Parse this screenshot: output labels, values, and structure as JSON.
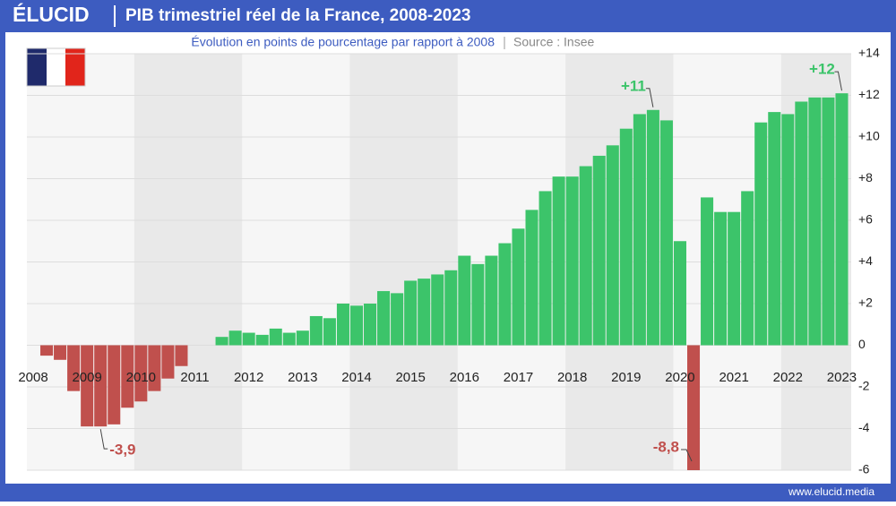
{
  "brand": "ÉLUCID",
  "footer": "www.elucid.media",
  "chart_data": {
    "type": "bar",
    "title": "PIB trimestriel réel de la France, 2008-2023",
    "subtitle": "Évolution en points de pourcentage par rapport à 2008",
    "source": "Source : Insee",
    "categories": [
      "2008",
      null,
      null,
      null,
      "2009",
      null,
      null,
      null,
      "2010",
      null,
      null,
      null,
      "2011",
      null,
      null,
      null,
      "2012",
      null,
      null,
      null,
      "2013",
      null,
      null,
      null,
      "2014",
      null,
      null,
      null,
      "2015",
      null,
      null,
      null,
      "2016",
      null,
      null,
      null,
      "2017",
      null,
      null,
      null,
      "2018",
      null,
      null,
      null,
      "2019",
      null,
      null,
      null,
      "2020",
      null,
      null,
      null,
      "2021",
      null,
      null,
      null,
      "2022",
      null,
      null,
      null,
      "2023"
    ],
    "values": [
      0,
      -0.5,
      -0.7,
      -2.2,
      -3.9,
      -3.9,
      -3.8,
      -3.0,
      -2.7,
      -2.2,
      -1.6,
      -1.0,
      0,
      0,
      0.4,
      0.7,
      0.6,
      0.5,
      0.8,
      0.6,
      0.7,
      1.4,
      1.3,
      2.0,
      1.9,
      2.0,
      2.6,
      2.5,
      3.1,
      3.2,
      3.4,
      3.6,
      4.3,
      3.9,
      4.3,
      4.9,
      5.6,
      6.5,
      7.4,
      8.1,
      8.1,
      8.6,
      9.1,
      9.6,
      10.4,
      11.1,
      11.3,
      10.8,
      5.0,
      -8.8,
      7.1,
      6.4,
      6.4,
      7.4,
      10.7,
      11.2,
      11.1,
      11.7,
      11.9,
      11.9,
      12.1
    ],
    "value_labels": [
      null,
      null,
      null,
      null,
      null,
      "-3,9",
      null,
      null,
      null,
      null,
      null,
      null,
      null,
      null,
      null,
      null,
      null,
      null,
      null,
      null,
      null,
      null,
      null,
      null,
      null,
      null,
      null,
      null,
      null,
      null,
      null,
      null,
      null,
      null,
      null,
      null,
      null,
      null,
      null,
      null,
      null,
      null,
      null,
      null,
      null,
      null,
      "+11",
      null,
      null,
      "-8,8",
      null,
      null,
      null,
      null,
      null,
      null,
      null,
      null,
      null,
      null,
      "+12"
    ],
    "positive_color": "#3cc46a",
    "negative_color": "#c0504d",
    "ylim": [
      -6,
      14
    ],
    "yticks": [
      -6,
      -4,
      -2,
      0,
      {
        "value": 2,
        "label": "+2"
      },
      {
        "value": 4,
        "label": "+4"
      },
      {
        "value": 6,
        "label": "+6"
      },
      {
        "value": 8,
        "label": "+8"
      },
      {
        "value": 10,
        "label": "+10"
      },
      {
        "value": 12,
        "label": "+12"
      },
      {
        "value": 14,
        "label": "+14"
      }
    ],
    "grid": true
  }
}
